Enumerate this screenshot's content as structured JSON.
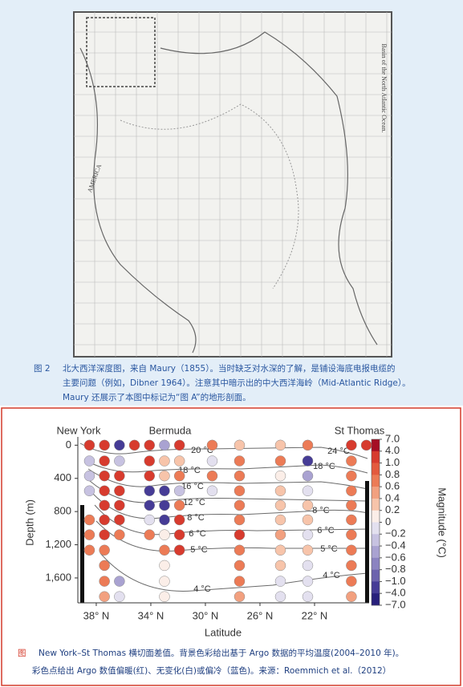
{
  "map": {
    "labels": [
      "AMERICA",
      "Basin of the North Atlantic Ocean."
    ]
  },
  "caption_top": {
    "label": "图 2",
    "lines": [
      "北大西洋深度图，来自 Maury（1855）。当时缺乏对水深的了解，是铺设海底电报电缆的",
      "主要问题（例如，Dibner 1964）。注意其中暗示出的中大西洋海岭（Mid-Atlantic Ridge）。",
      "Maury 还展示了本图中标记为“图 A”的地形剖面。"
    ]
  },
  "chart_data": {
    "type": "scatter",
    "stations": [
      "New York",
      "Bermuda",
      "St Thomas"
    ],
    "xlabel": "Latitude",
    "ylabel": "Depth (m)",
    "colorbar_label": "Magnitude (°C)",
    "xlim": [
      39.35,
      18
    ],
    "ylim": [
      -100,
      1900
    ],
    "xticks": [
      {
        "value": 38,
        "label": "38° N"
      },
      {
        "value": 34,
        "label": "34° N"
      },
      {
        "value": 30,
        "label": "30° N"
      },
      {
        "value": 26,
        "label": "26° N"
      },
      {
        "value": 22,
        "label": "22° N"
      }
    ],
    "yticks": [
      0,
      400,
      800,
      {
        "value": 1200,
        "label": "1,200"
      },
      {
        "value": 1600,
        "label": "1,600"
      }
    ],
    "colorbar_ticks": [
      {
        "value": 7,
        "label": "7.0"
      },
      {
        "value": 4,
        "label": "4.0"
      },
      {
        "value": 1,
        "label": "1.0"
      },
      0.8,
      0.6,
      0.4,
      0.2,
      0,
      {
        "value": -0.2,
        "label": "−0.2"
      },
      {
        "value": -0.4,
        "label": "−0.4"
      },
      {
        "value": -0.6,
        "label": "−0.6"
      },
      {
        "value": -0.8,
        "label": "−0.8"
      },
      {
        "value": -1,
        "label": "−1.0"
      },
      {
        "value": -4,
        "label": "−4.0"
      },
      {
        "value": -7,
        "label": "−7.0"
      }
    ],
    "colorbar_colors": [
      "#a50f24",
      "#d73b2e",
      "#e35a3e",
      "#ec7b56",
      "#f2a07f",
      "#f7c4aa",
      "#fbeee8",
      "#e3e0ef",
      "#c7c2e1",
      "#a9a2d1",
      "#8b83c0",
      "#6c63ad",
      "#463c96",
      "#28207c"
    ],
    "contour_labels": [
      "20 °C",
      "24 °C",
      "18 °C",
      "18 °C",
      "16 °C",
      "12 °C",
      "8 °C",
      "8 °C",
      "6 °C",
      "6 °C",
      "5 °C",
      "5 °C",
      "4 °C",
      "4 °C"
    ],
    "columns": [
      {
        "x": 38.5,
        "y": [
          0,
          190,
          370,
          550,
          900,
          1080,
          1265
        ],
        "values": [
          2,
          -0.3,
          -0.3,
          -0.3,
          0.7,
          0.7,
          0.7
        ]
      },
      {
        "x": 37.4,
        "y": [
          0,
          190,
          370,
          550,
          725,
          900,
          1080,
          1265,
          1450,
          1640,
          1825
        ],
        "values": [
          2,
          2,
          2,
          2,
          2,
          2,
          2,
          0.7,
          0.7,
          0.7,
          0.5
        ]
      },
      {
        "x": 36.3,
        "y": [
          0,
          190,
          370,
          550,
          725,
          900,
          1080,
          1640,
          1825
        ],
        "values": [
          -1.5,
          -0.3,
          2,
          2,
          2,
          2,
          0.7,
          -0.5,
          -0.1
        ]
      },
      {
        "x": 35.2,
        "y": [
          0
        ],
        "values": [
          2
        ]
      },
      {
        "x": 34.1,
        "y": [
          0,
          190,
          370,
          550,
          725,
          900,
          1080
        ],
        "values": [
          2,
          2,
          2,
          -1.5,
          -1.5,
          -0.1,
          0.7
        ]
      },
      {
        "x": 33.0,
        "y": [
          0,
          190,
          370,
          550,
          725,
          900,
          1080,
          1265,
          1450,
          1640,
          1825
        ],
        "values": [
          -0.5,
          0.3,
          0.3,
          -1.5,
          -1.5,
          -1.5,
          0.1,
          0.7,
          0.1,
          0.1,
          0.1
        ]
      },
      {
        "x": 31.9,
        "y": [
          0,
          190,
          370,
          550,
          725,
          900,
          1080,
          1265
        ],
        "values": [
          2,
          0.3,
          0.7,
          -0.3,
          0.7,
          2,
          2,
          2
        ]
      },
      {
        "x": 29.5,
        "y": [
          0,
          190,
          370,
          550
        ],
        "values": [
          0.7,
          -0.1,
          0.7,
          -0.1
        ]
      },
      {
        "x": 27.5,
        "y": [
          0,
          190,
          370,
          550,
          725,
          900,
          1080,
          1265,
          1450,
          1640,
          1825
        ],
        "values": [
          0.3,
          0.7,
          0.7,
          0.7,
          0.7,
          0.7,
          2,
          0.7,
          0.7,
          0.7,
          0.5
        ]
      },
      {
        "x": 24.5,
        "y": [
          0,
          190,
          370,
          550,
          725,
          900,
          1080,
          1265,
          1450,
          1640,
          1825
        ],
        "values": [
          0.3,
          0.7,
          0.1,
          0.3,
          0.3,
          0.3,
          0.5,
          0.3,
          0.3,
          -0.1,
          -0.1
        ]
      },
      {
        "x": 22.5,
        "y": [
          0,
          190,
          370,
          550,
          725,
          900,
          1080,
          1265,
          1450,
          1640,
          1825
        ],
        "values": [
          0.7,
          -1.5,
          -0.5,
          -0.1,
          0.3,
          0.3,
          -0.1,
          0.3,
          -0.1,
          -0.1,
          -0.1
        ]
      },
      {
        "x": 19.3,
        "y": [
          0,
          190,
          370,
          550,
          725,
          900,
          1080,
          1265,
          1450,
          1640,
          1825
        ],
        "values": [
          2,
          0.7,
          0.7,
          0.7,
          0.7,
          0.7,
          0.7,
          0.7,
          0.7,
          0.7,
          0.5
        ]
      },
      {
        "x": 18.2,
        "y": [
          0
        ],
        "values": [
          2
        ]
      }
    ]
  },
  "caption_bottom": {
    "label": "图",
    "lines": [
      "New York–St Thomas 横切面差值。背景色彩给出基于 Argo 数据的平均温度(2004–2010 年)。",
      "彩色点给出 Argo 数值偏暖(红)、无变化(白)或偏冷（蓝色)。来源：Roemmich et al.（2012）"
    ]
  }
}
